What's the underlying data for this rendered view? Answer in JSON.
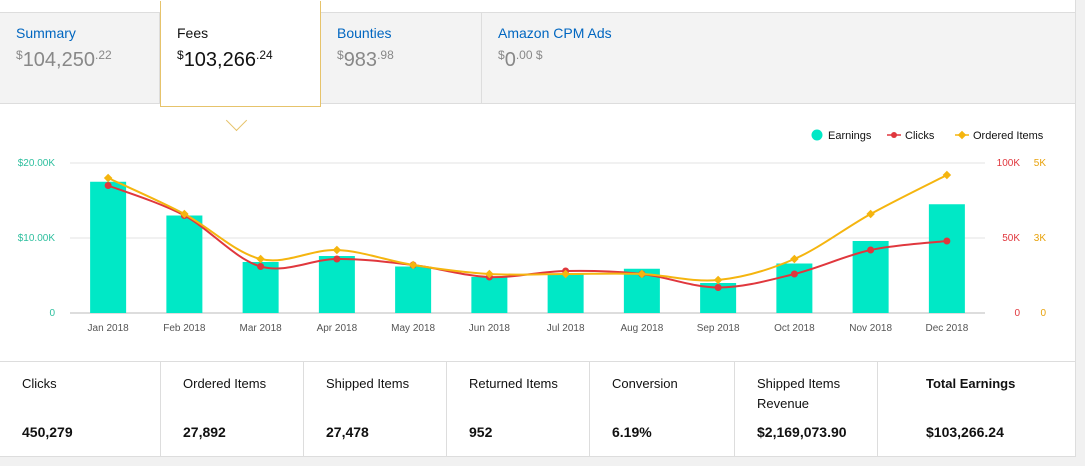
{
  "tabs": [
    {
      "label": "Summary",
      "currency": "$",
      "amount": "104,250",
      "cents": ".22",
      "active": false
    },
    {
      "label": "Fees",
      "currency": "$",
      "amount": "103,266",
      "cents": ".24",
      "active": true
    },
    {
      "label": "Bounties",
      "currency": "$",
      "amount": "983",
      "cents": ".98",
      "active": false
    },
    {
      "label": "Amazon CPM Ads",
      "currency": "$",
      "amount": "0",
      "cents": ".00 $",
      "active": false
    }
  ],
  "colors": {
    "earnings": "#00e8c6",
    "clicks": "#e0373d",
    "ordered": "#f5b50f",
    "tab_active_border": "#e6c36b",
    "link": "#0066c0"
  },
  "chart_data": {
    "type": "bar",
    "categories": [
      "Jan 2018",
      "Feb 2018",
      "Mar 2018",
      "Apr 2018",
      "May 2018",
      "Jun 2018",
      "Jul 2018",
      "Aug 2018",
      "Sep 2018",
      "Oct 2018",
      "Nov 2018",
      "Dec 2018"
    ],
    "legend": [
      "Earnings",
      "Clicks",
      "Ordered Items"
    ],
    "legend_position": "top-right",
    "series": [
      {
        "name": "Earnings",
        "type": "bar",
        "axis": "left",
        "values": [
          17500,
          13000,
          6800,
          7600,
          6200,
          4800,
          5200,
          5900,
          4000,
          6600,
          9600,
          14500
        ]
      },
      {
        "name": "Clicks",
        "type": "line",
        "axis": "right1",
        "values": [
          85000,
          65000,
          31000,
          36000,
          32000,
          24000,
          28000,
          26000,
          17000,
          26000,
          42000,
          48000
        ]
      },
      {
        "name": "Ordered Items",
        "type": "line",
        "axis": "right2",
        "values": [
          4500,
          3300,
          1800,
          2100,
          1600,
          1300,
          1300,
          1300,
          1100,
          1800,
          3300,
          4600
        ]
      }
    ],
    "left_axis": {
      "ticks": [
        "0",
        "$10.00K",
        "$20.00K"
      ],
      "tick_values": [
        0,
        10000,
        20000
      ],
      "ylim": [
        0,
        20000
      ]
    },
    "right_axis_1": {
      "ticks": [
        "0",
        "50K",
        "100K"
      ],
      "tick_values": [
        0,
        50000,
        100000
      ],
      "ylim": [
        0,
        100000
      ]
    },
    "right_axis_2": {
      "ticks": [
        "0",
        "3K",
        "5K"
      ],
      "tick_values": [
        0,
        2500,
        5000
      ],
      "ylim": [
        0,
        5000
      ]
    },
    "grid": true
  },
  "stats": [
    {
      "label": "Clicks",
      "value": "450,279"
    },
    {
      "label": "Ordered Items",
      "value": "27,892"
    },
    {
      "label": "Shipped Items",
      "value": "27,478"
    },
    {
      "label": "Returned Items",
      "value": "952"
    },
    {
      "label": "Conversion",
      "value": "6.19%"
    },
    {
      "label": "Shipped Items Revenue",
      "value": "$2,169,073.90"
    },
    {
      "label": "Total Earnings",
      "value": "$103,266.24"
    }
  ]
}
